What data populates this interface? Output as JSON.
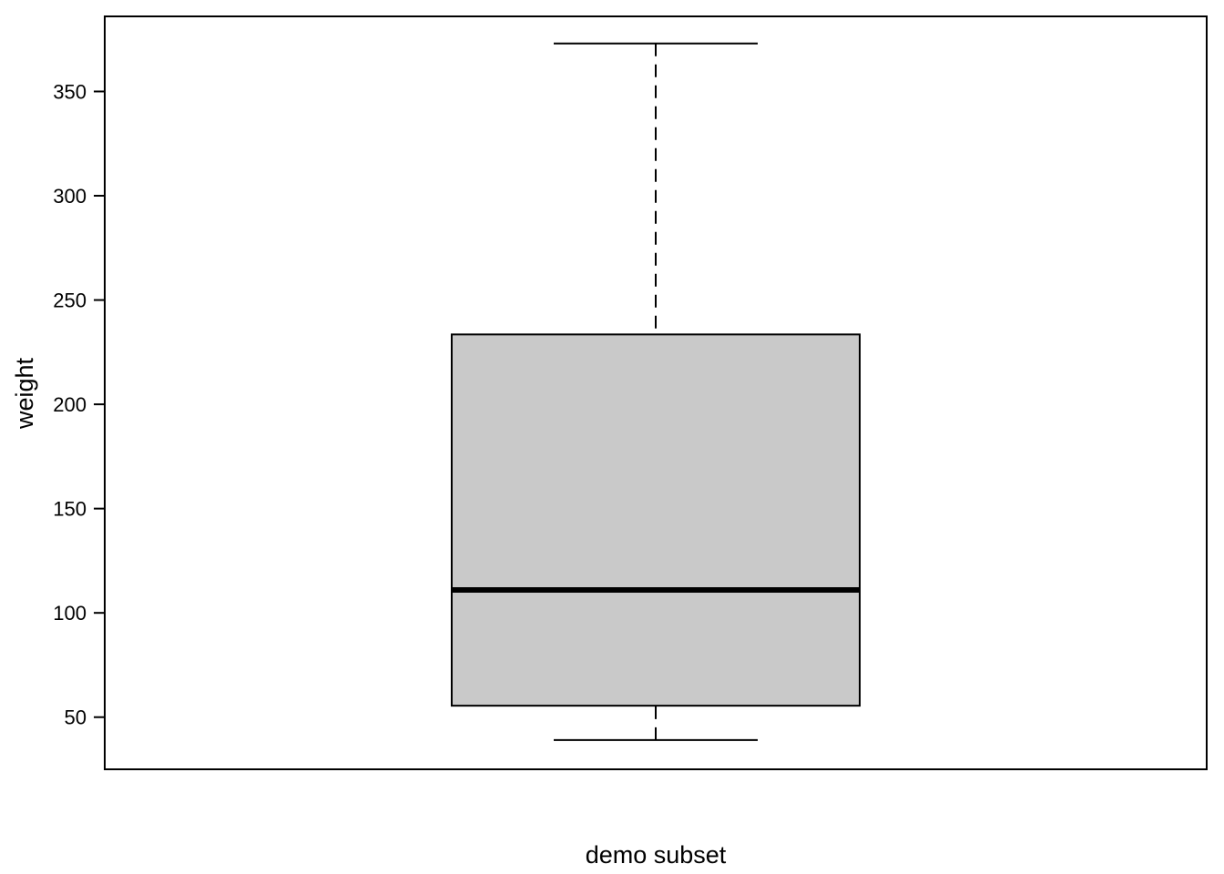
{
  "chart_data": {
    "type": "box",
    "xlabel": "demo subset",
    "ylabel": "weight",
    "ylim": [
      25,
      386
    ],
    "yticks": [
      50,
      100,
      150,
      200,
      250,
      300,
      350
    ],
    "grid": false,
    "legend": "none",
    "series": [
      {
        "whisker_low": 39,
        "q1": 55.5,
        "median": 111,
        "q3": 233.5,
        "whisker_high": 373
      }
    ],
    "colors": {
      "box_fill": "#c9c9c9",
      "stroke": "#000000"
    }
  }
}
